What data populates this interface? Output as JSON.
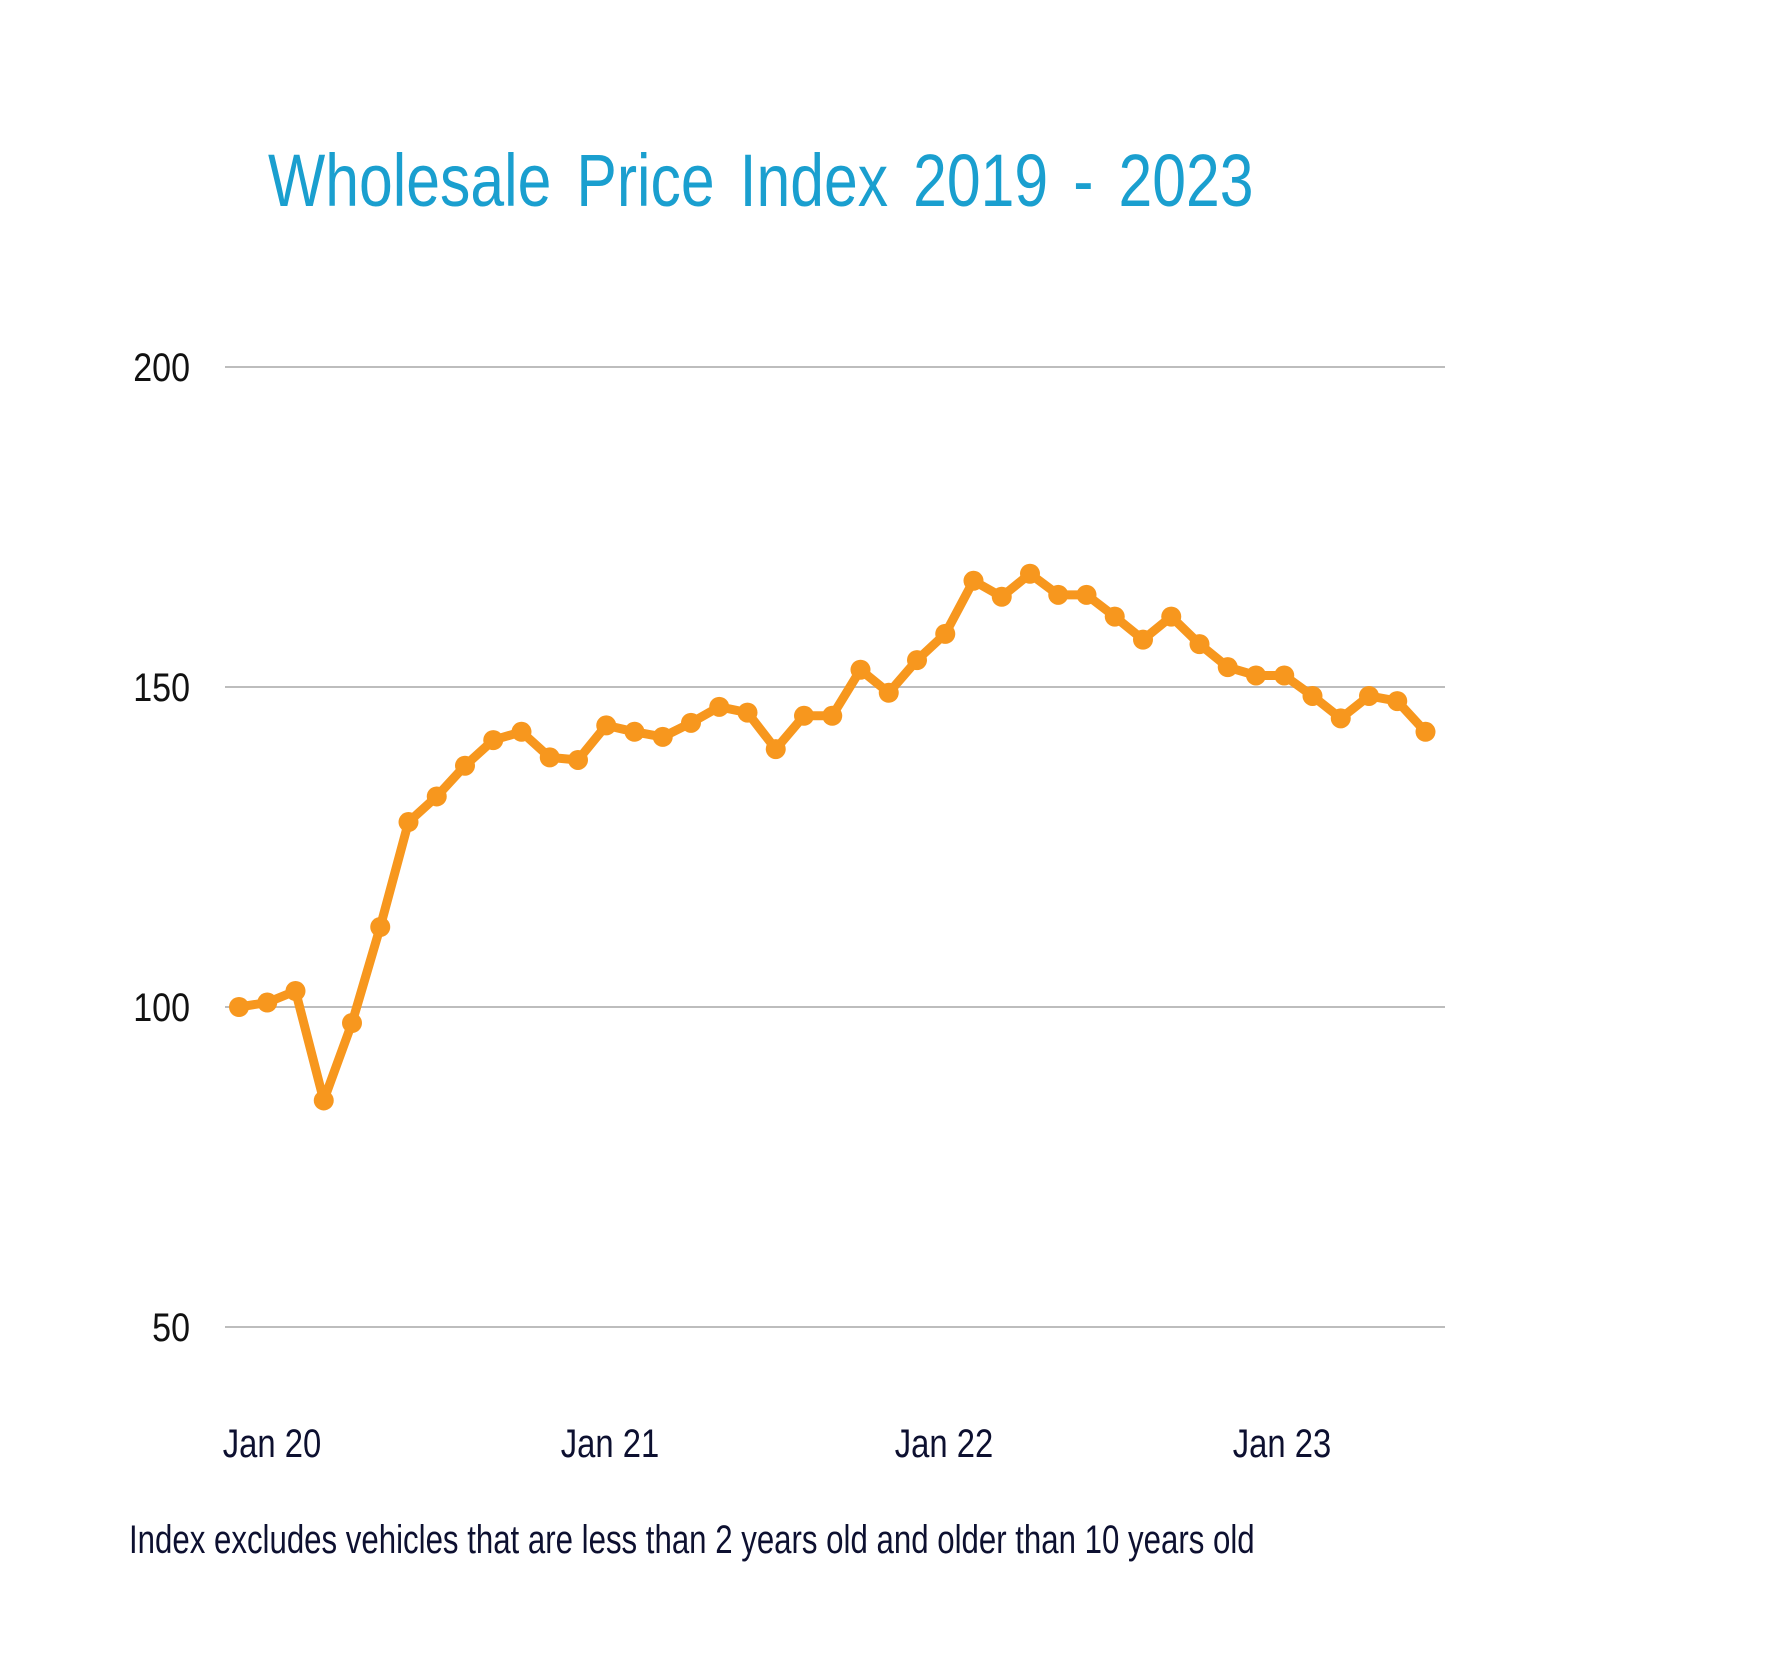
{
  "title": "Wholesale Price Index 2019 - 2023",
  "footnote": "Index excludes vehicles that are less than 2 years old and older than 10 years old",
  "colors": {
    "title": "#1a9fcf",
    "line": "#f7971e",
    "grid": "#bdbdbd",
    "text": "#0d1030"
  },
  "chart_data": {
    "type": "line",
    "title": "Wholesale Price Index 2019 - 2023",
    "xlabel": "",
    "ylabel": "",
    "ylim": [
      50,
      200
    ],
    "yticks": [
      200,
      150,
      100,
      50
    ],
    "xtick_labels": [
      "Jan 20",
      "Jan 21",
      "Jan 22",
      "Jan 23"
    ],
    "grid": "horizontal",
    "legend": null,
    "annotation": "Index excludes vehicles that are less than 2 years old and older than 10 years old",
    "series": [
      {
        "name": "Wholesale Price Index",
        "color": "#f7971e",
        "x": [
          "Jan 20",
          "Feb 20",
          "Mar 20",
          "Apr 20",
          "May 20",
          "Jun 20",
          "Jul 20",
          "Aug 20",
          "Sep 20",
          "Oct 20",
          "Nov 20",
          "Dec 20",
          "Jan 21",
          "Feb 21",
          "Mar 21",
          "Apr 21",
          "May 21",
          "Jun 21",
          "Jul 21",
          "Aug 21",
          "Sep 21",
          "Oct 21",
          "Nov 21",
          "Dec 21",
          "Jan 22",
          "Feb 22",
          "Mar 22",
          "Apr 22",
          "May 22",
          "Jun 22",
          "Jul 22",
          "Aug 22",
          "Sep 22",
          "Oct 22",
          "Nov 22",
          "Dec 22",
          "Jan 23",
          "Feb 23",
          "Mar 23",
          "Apr 23",
          "May 23",
          "Jun 23",
          "Jul 23"
        ],
        "values": [
          100,
          100.7,
          102.5,
          85.4,
          97.5,
          112.5,
          128.9,
          132.9,
          137.7,
          141.7,
          143.0,
          139.0,
          138.6,
          144.0,
          143.0,
          142.2,
          144.4,
          146.9,
          146.0,
          140.3,
          145.5,
          145.5,
          152.7,
          149.1,
          154.2,
          158.3,
          166.6,
          164.1,
          167.7,
          164.4,
          164.4,
          161.0,
          157.4,
          161.0,
          156.7,
          153.1,
          151.8,
          151.8,
          148.6,
          145.1,
          148.6,
          147.8,
          143.0
        ]
      }
    ]
  }
}
